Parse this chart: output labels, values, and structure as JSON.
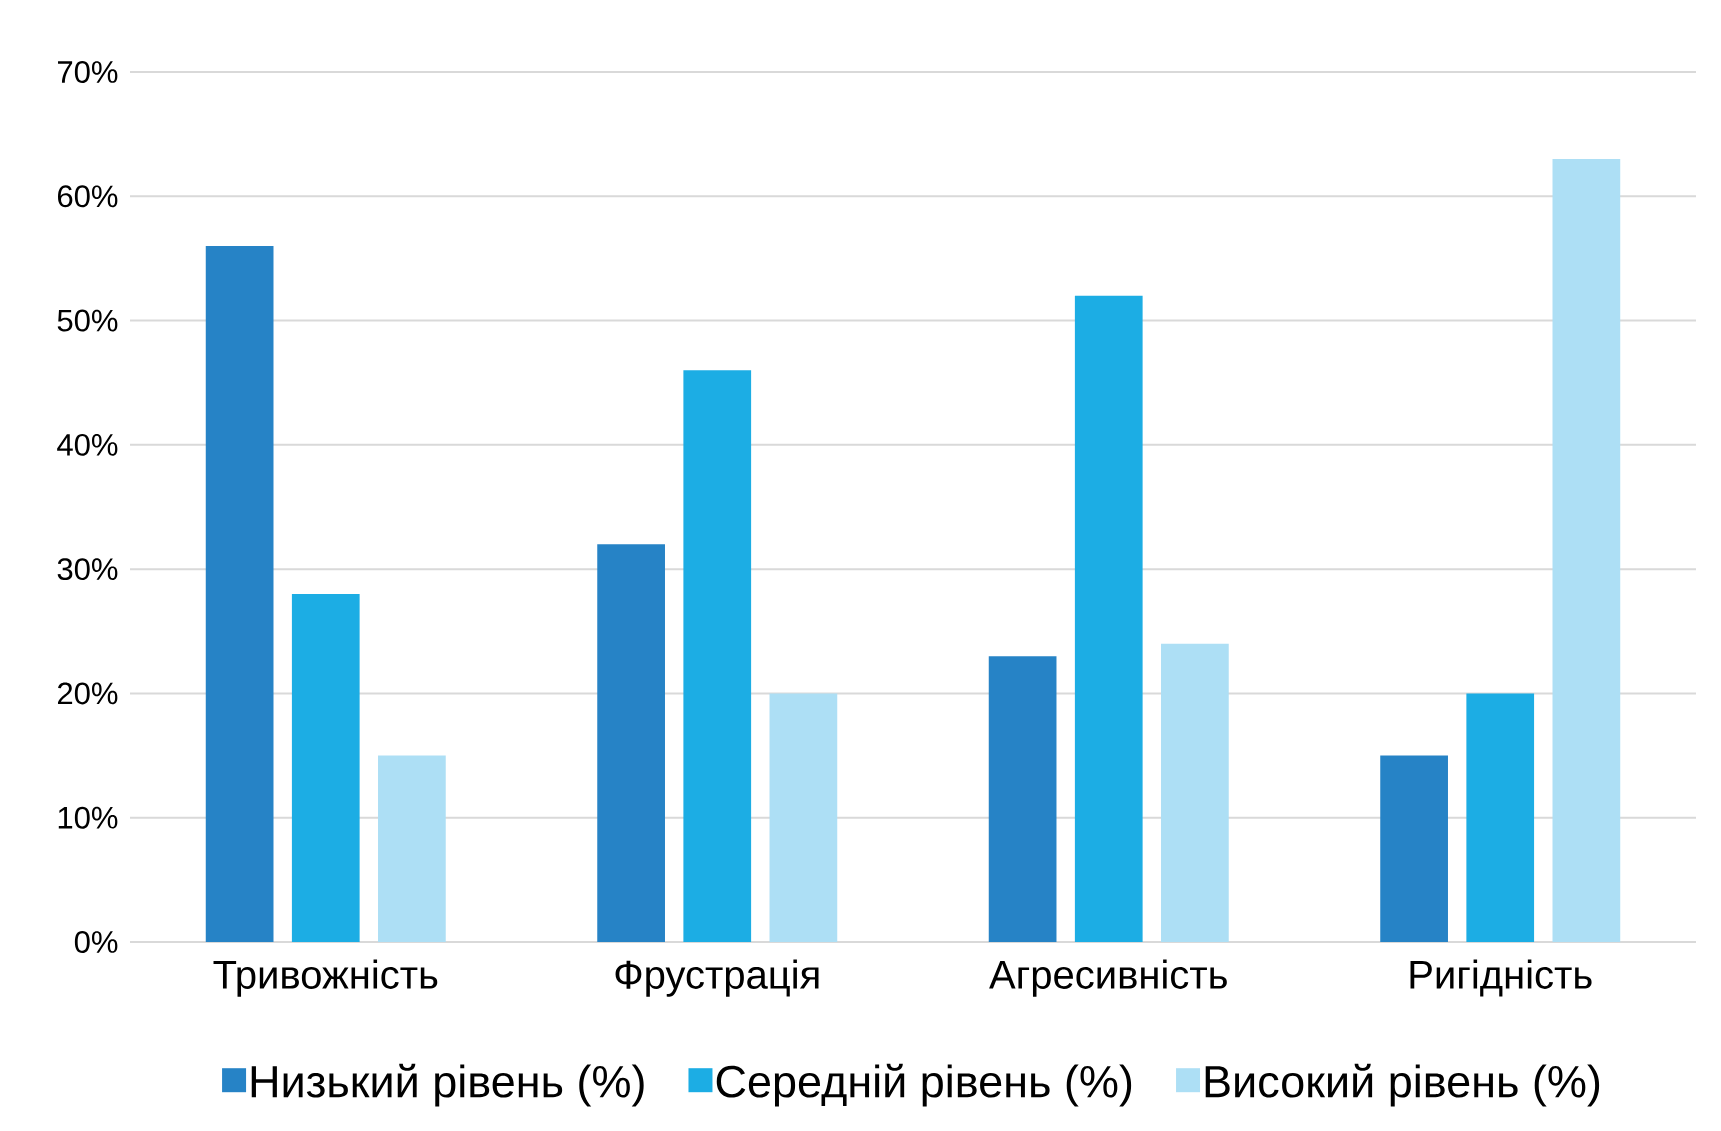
{
  "chart_data": {
    "type": "bar",
    "categories": [
      "Тривожність",
      "Фрустрація",
      "Агресивність",
      "Ригідність"
    ],
    "series": [
      {
        "name": "Низький рівень (%)",
        "color": "#2683c6",
        "values": [
          56,
          32,
          23,
          15
        ]
      },
      {
        "name": "Середній рівень (%)",
        "color": "#1cade4",
        "values": [
          28,
          46,
          52,
          20
        ]
      },
      {
        "name": "Високий рівень (%)",
        "color": "#addff5",
        "values": [
          15,
          20,
          24,
          63
        ]
      }
    ],
    "ylim": [
      0,
      70
    ],
    "yticks": [
      {
        "value": 0,
        "label": "0%"
      },
      {
        "value": 10,
        "label": "10%"
      },
      {
        "value": 20,
        "label": "20%"
      },
      {
        "value": 30,
        "label": "30%"
      },
      {
        "value": 40,
        "label": "40%"
      },
      {
        "value": 50,
        "label": "50%"
      },
      {
        "value": 60,
        "label": "60%"
      },
      {
        "value": 70,
        "label": "70%"
      }
    ],
    "grid": "y",
    "legend": "bottom"
  }
}
